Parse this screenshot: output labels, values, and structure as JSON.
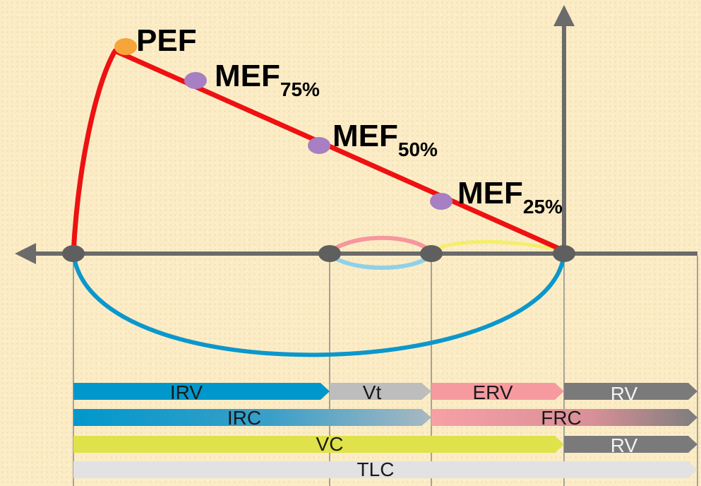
{
  "points": {
    "pef": "PEF",
    "mef75": {
      "base": "MEF",
      "sub": "75%"
    },
    "mef50": {
      "base": "MEF",
      "sub": "50%"
    },
    "mef25": {
      "base": "MEF",
      "sub": "25%"
    }
  },
  "bars": {
    "row1": {
      "irv": "IRV",
      "vt": "Vt",
      "erv": "ERV",
      "rv": "RV"
    },
    "row2": {
      "irc": "IRC",
      "frc": "FRC"
    },
    "row3": {
      "vc": "VC",
      "rv": "RV"
    },
    "row4": {
      "tlc": "TLC"
    }
  },
  "colors": {
    "curve": "#ee1111",
    "pef_dot": "#f5a53a",
    "mef_dot": "#a77fc2",
    "axis": "#6b6b6b",
    "irv": "#0098cc",
    "vt": "#bdbdbd",
    "erv": "#f79aa0",
    "rv": "#7a7a7a",
    "vc": "#dfe24a",
    "tlc": "#e2e2e2"
  }
}
